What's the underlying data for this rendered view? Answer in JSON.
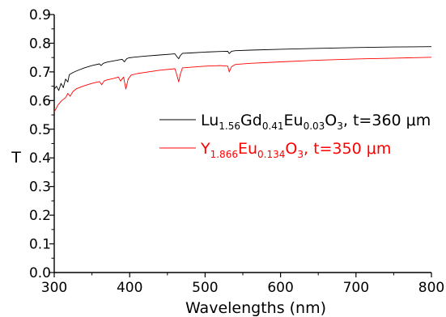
{
  "chart_data": {
    "type": "line",
    "title": "",
    "xlabel": "Wavelengths (nm)",
    "ylabel": "T",
    "xlim": [
      300,
      800
    ],
    "ylim": [
      0.0,
      0.9
    ],
    "xticks": [
      300,
      400,
      500,
      600,
      700,
      800
    ],
    "yticks": [
      0.0,
      0.1,
      0.2,
      0.3,
      0.4,
      0.5,
      0.6,
      0.7,
      0.8,
      0.9
    ],
    "xtick_labels": [
      "300",
      "400",
      "500",
      "600",
      "700",
      "800"
    ],
    "ytick_labels": [
      "0.0",
      "0.1",
      "0.2",
      "0.3",
      "0.4",
      "0.5",
      "0.6",
      "0.7",
      "0.8",
      "0.9"
    ],
    "grid": false,
    "legend_position": "center-right",
    "series": [
      {
        "name": "Lu1.56Gd0.41Eu0.03O3, t=360 μm",
        "name_parts": [
          {
            "t": "Lu",
            "sub": false
          },
          {
            "t": "1.56",
            "sub": true
          },
          {
            "t": "Gd",
            "sub": false
          },
          {
            "t": "0.41",
            "sub": true
          },
          {
            "t": "Eu",
            "sub": false
          },
          {
            "t": "0.03",
            "sub": true
          },
          {
            "t": "O",
            "sub": false
          },
          {
            "t": "3",
            "sub": true
          },
          {
            "t": ", t=360 ",
            "sub": false
          },
          {
            "t": "μm",
            "sub": false
          }
        ],
        "color": "#000000",
        "x": [
          300,
          303,
          306,
          309,
          312,
          315,
          318,
          320,
          325,
          330,
          340,
          350,
          360,
          362,
          365,
          370,
          380,
          390,
          393,
          396,
          399,
          405,
          420,
          440,
          460,
          463,
          465,
          467,
          470,
          480,
          500,
          520,
          530,
          532,
          535,
          540,
          560,
          600,
          650,
          700,
          750,
          800
        ],
        "y": [
          0.64,
          0.65,
          0.635,
          0.66,
          0.645,
          0.675,
          0.665,
          0.69,
          0.698,
          0.704,
          0.714,
          0.722,
          0.728,
          0.722,
          0.73,
          0.734,
          0.739,
          0.744,
          0.735,
          0.746,
          0.749,
          0.751,
          0.755,
          0.759,
          0.763,
          0.752,
          0.746,
          0.756,
          0.765,
          0.766,
          0.769,
          0.771,
          0.772,
          0.764,
          0.772,
          0.774,
          0.776,
          0.779,
          0.782,
          0.785,
          0.787,
          0.788
        ]
      },
      {
        "name": "Y1.866Eu0.134O3, t=350 μm",
        "name_parts": [
          {
            "t": "Y",
            "sub": false
          },
          {
            "t": "1.866",
            "sub": true
          },
          {
            "t": "Eu",
            "sub": false
          },
          {
            "t": "0.134",
            "sub": true
          },
          {
            "t": "O",
            "sub": false
          },
          {
            "t": "3",
            "sub": true
          },
          {
            "t": ", t=350 ",
            "sub": false
          },
          {
            "t": "μm",
            "sub": false
          }
        ],
        "color": "#ff0000",
        "x": [
          300,
          305,
          310,
          315,
          318,
          321,
          325,
          330,
          340,
          350,
          360,
          363,
          366,
          370,
          380,
          385,
          388,
          392,
          395,
          398,
          402,
          410,
          420,
          440,
          460,
          463,
          465,
          467,
          470,
          480,
          500,
          520,
          530,
          532,
          535,
          540,
          560,
          600,
          650,
          700,
          750,
          800
        ],
        "y": [
          0.56,
          0.585,
          0.6,
          0.61,
          0.625,
          0.615,
          0.632,
          0.642,
          0.652,
          0.66,
          0.666,
          0.655,
          0.668,
          0.672,
          0.678,
          0.682,
          0.668,
          0.682,
          0.64,
          0.675,
          0.689,
          0.694,
          0.698,
          0.706,
          0.711,
          0.685,
          0.665,
          0.69,
          0.714,
          0.716,
          0.72,
          0.722,
          0.72,
          0.7,
          0.718,
          0.726,
          0.73,
          0.735,
          0.741,
          0.745,
          0.748,
          0.751
        ]
      }
    ]
  }
}
